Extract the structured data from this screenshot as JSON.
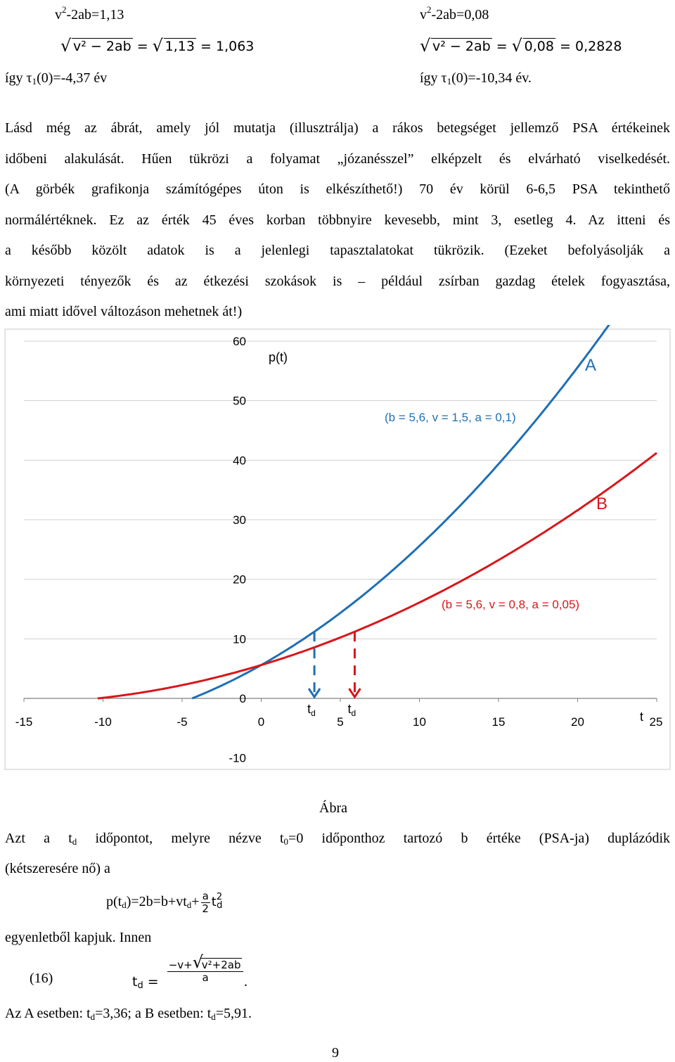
{
  "top_left": {
    "eq1_a": "v",
    "eq1_sup": "2",
    "eq1_b": "-2ab=1,13",
    "sqrt_lhs": "v² − 2ab",
    "sqrt_mid": "1,13",
    "sqrt_rhs": "= 1,063",
    "so_a": "így τ",
    "so_sub": "1",
    "so_b": "(0)=-4,37 év"
  },
  "top_right": {
    "eq1_a": "v",
    "eq1_sup": "2",
    "eq1_b": "-2ab=0,08",
    "sqrt_lhs": "v² − 2ab",
    "sqrt_mid": "0,08",
    "sqrt_rhs": "= 0,2828",
    "so_a": "így τ",
    "so_sub": "1",
    "so_b": "(0)=-10,34 év."
  },
  "paragraph_lines": [
    "Lásd még az ábrát, amely jól mutatja (illusztrálja) a rákos betegséget jellemző PSA értékeinek",
    "időbeni alakulását. Hűen tükrözi a folyamat „józanésszel” elképzelt és elvárható viselkedését.",
    "(A görbék grafikonja számítógépes úton is elkészíthető!) 70 év körül 6-6,5 PSA tekinthető",
    "normálértéknek. Ez az érték 45 éves korban többnyire kevesebb, mint 3, esetleg 4. Az itteni és",
    "a később közölt adatok is a jelenlegi tapasztalatokat tükrözik. (Ezeket befolyásolják a",
    "környezeti tényezők és az étkezési szokások is – például zsírban gazdag ételek fogyasztása,",
    "ami miatt idővel változáson mehetnek át!)"
  ],
  "chart_data": {
    "type": "line",
    "xlim": [
      -15,
      25
    ],
    "ylim": [
      -10,
      60
    ],
    "x_ticks": [
      "-15",
      "-10",
      "-5",
      "0",
      "5",
      "10",
      "15",
      "20",
      "25"
    ],
    "y_ticks": [
      "60",
      "50",
      "40",
      "30",
      "20",
      "10",
      "0",
      "-10"
    ],
    "y_axis_label": "p(t)",
    "x_axis_label": "t",
    "gridlines": "horizontal",
    "series": [
      {
        "name": "A",
        "params_label": "(b = 5,6, v = 1,5, a = 0,1)",
        "b": 5.6,
        "v": 1.5,
        "a": 0.1,
        "x_range": [
          -4.37,
          22.5
        ],
        "color": "#1f6fb4",
        "td": 3.36,
        "td_label": "t",
        "td_sub": "d"
      },
      {
        "name": "B",
        "params_label": "(b = 5,6, v = 0,8, a = 0,05)",
        "b": 5.6,
        "v": 0.8,
        "a": 0.05,
        "x_range": [
          -10.34,
          25
        ],
        "color": "#d8161b",
        "td": 5.91,
        "td_label": "t",
        "td_sub": "d"
      }
    ]
  },
  "caption": "Ábra",
  "text2": {
    "l1_a": "Azt a t",
    "l1_sub1": "d",
    "l1_b": " időpontot, melyre nézve t",
    "l1_sub2": "0",
    "l1_c": "=0 időponthoz tartozó b értéke (PSA-ja) duplázódik",
    "l2": "(kétszeresére nő) a",
    "eq_a": "p(t",
    "eq_sub1": "d",
    "eq_b": ")=2b=b+vt",
    "eq_sub2": "d",
    "eq_c": "+",
    "eq_frac_num": "a",
    "eq_frac_den": "2",
    "eq_d": "t",
    "eq_sup": "2",
    "eq_sub3": "d",
    "l3": "egyenletből kapjuk. Innen",
    "eq16_label": "(16)",
    "eq16_lhs": "t",
    "eq16_lhs_sub": "d",
    "eq16_eq": "=",
    "eq16_num_a": "−v+",
    "eq16_num_rad": "v²+2ab",
    "eq16_den": "a",
    "eq16_dot": ".",
    "res_a": "Az A esetben: t",
    "res_sub1": "d",
    "res_b": "=3,36; a B esetben: t",
    "res_sub2": "d",
    "res_c": "=5,91."
  },
  "page_number": "9"
}
